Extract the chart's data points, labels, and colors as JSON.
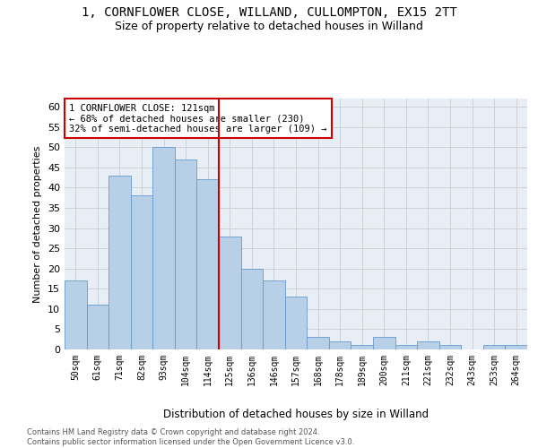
{
  "title": "1, CORNFLOWER CLOSE, WILLAND, CULLOMPTON, EX15 2TT",
  "subtitle": "Size of property relative to detached houses in Willand",
  "xlabel": "Distribution of detached houses by size in Willand",
  "ylabel": "Number of detached properties",
  "footer_line1": "Contains HM Land Registry data © Crown copyright and database right 2024.",
  "footer_line2": "Contains public sector information licensed under the Open Government Licence v3.0.",
  "bar_labels": [
    "50sqm",
    "61sqm",
    "71sqm",
    "82sqm",
    "93sqm",
    "104sqm",
    "114sqm",
    "125sqm",
    "136sqm",
    "146sqm",
    "157sqm",
    "168sqm",
    "178sqm",
    "189sqm",
    "200sqm",
    "211sqm",
    "221sqm",
    "232sqm",
    "243sqm",
    "253sqm",
    "264sqm"
  ],
  "bar_values": [
    17,
    11,
    43,
    38,
    50,
    47,
    42,
    28,
    20,
    17,
    13,
    3,
    2,
    1,
    3,
    1,
    2,
    1,
    0,
    1,
    1
  ],
  "bar_color": "#b8cfe8",
  "bar_edge_color": "#6699cc",
  "vline_color": "#cc0000",
  "annotation_text": "1 CORNFLOWER CLOSE: 121sqm\n← 68% of detached houses are smaller (230)\n32% of semi-detached houses are larger (109) →",
  "annotation_box_color": "#ffffff",
  "annotation_box_edge": "#cc0000",
  "ylim": [
    0,
    62
  ],
  "yticks": [
    0,
    5,
    10,
    15,
    20,
    25,
    30,
    35,
    40,
    45,
    50,
    55,
    60
  ],
  "grid_color": "#cccccc",
  "bg_color": "#e8eef5",
  "title_fontsize": 10,
  "subtitle_fontsize": 9
}
